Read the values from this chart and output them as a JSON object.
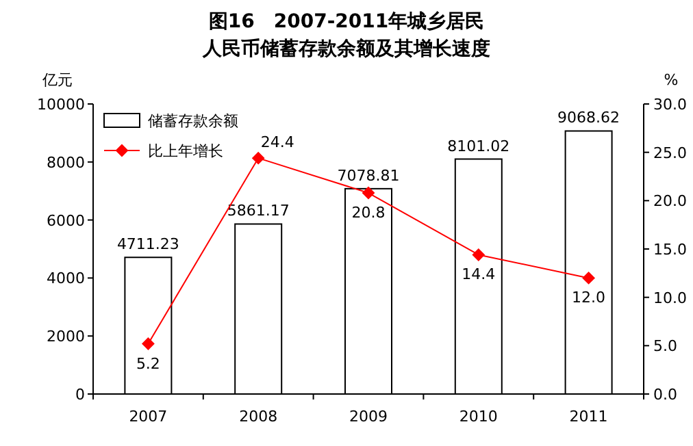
{
  "chart_data": {
    "type": "bar",
    "title": "图16　2007-2011年城乡居民",
    "subtitle": "人民币储蓄存款余额及其增长速度",
    "ylabel": "亿元",
    "y2label": "%",
    "categories": [
      "2007",
      "2008",
      "2009",
      "2010",
      "2011"
    ],
    "series": [
      {
        "name": "储蓄存款余额",
        "color": "#ffffff",
        "values": [
          4711.23,
          5861.17,
          7078.81,
          8101.02,
          9068.62
        ],
        "value_labels": [
          "4711.23",
          "5861.17",
          "7078.81",
          "8101.02",
          "9068.62"
        ]
      },
      {
        "name": "比上年增长",
        "type": "line",
        "axis": "y2",
        "color": "#ff0000",
        "values": [
          5.2,
          24.4,
          20.8,
          14.4,
          12.0
        ],
        "value_labels": [
          "5.2",
          "24.4",
          "20.8",
          "14.4",
          "12.0"
        ]
      }
    ],
    "ylim": [
      0,
      10000
    ],
    "yticks": [
      0,
      2000,
      4000,
      6000,
      8000,
      10000
    ],
    "y2lim": [
      0,
      30
    ],
    "y2ticks": [
      {
        "value": 0,
        "label": "0.0"
      },
      {
        "value": 5,
        "label": "5.0"
      },
      {
        "value": 10,
        "label": "10.0"
      },
      {
        "value": 15,
        "label": "15.0"
      },
      {
        "value": 20,
        "label": "20.0"
      },
      {
        "value": 25,
        "label": "25.0"
      },
      {
        "value": 30,
        "label": "30.0"
      }
    ],
    "legend": "top left",
    "marker": "diamond",
    "line_style": "solid",
    "grid": false
  }
}
